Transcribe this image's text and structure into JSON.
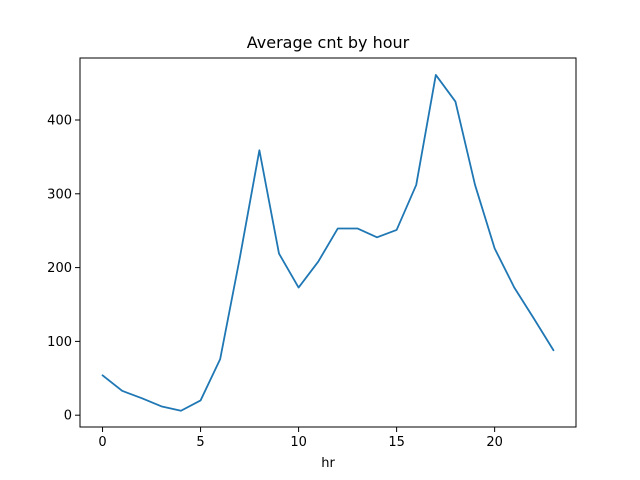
{
  "chart_data": {
    "type": "line",
    "title": "Average cnt by hour",
    "xlabel": "hr",
    "ylabel": "",
    "x": [
      0,
      1,
      2,
      3,
      4,
      5,
      6,
      7,
      8,
      9,
      10,
      11,
      12,
      13,
      14,
      15,
      16,
      17,
      18,
      19,
      20,
      21,
      22,
      23
    ],
    "series": [
      {
        "name": "",
        "color": "#1f77b4",
        "values": [
          54,
          33,
          23,
          12,
          6,
          20,
          76,
          213,
          359,
          219,
          173,
          208,
          253,
          253,
          241,
          251,
          312,
          461,
          425,
          312,
          226,
          173,
          131,
          88
        ]
      }
    ],
    "xlim": [
      -1.15,
      24.15
    ],
    "ylim": [
      -16,
      484
    ],
    "xticks": [
      0,
      5,
      10,
      15,
      20
    ],
    "yticks": [
      0,
      100,
      200,
      300,
      400
    ],
    "grid": false,
    "legend": "none"
  }
}
